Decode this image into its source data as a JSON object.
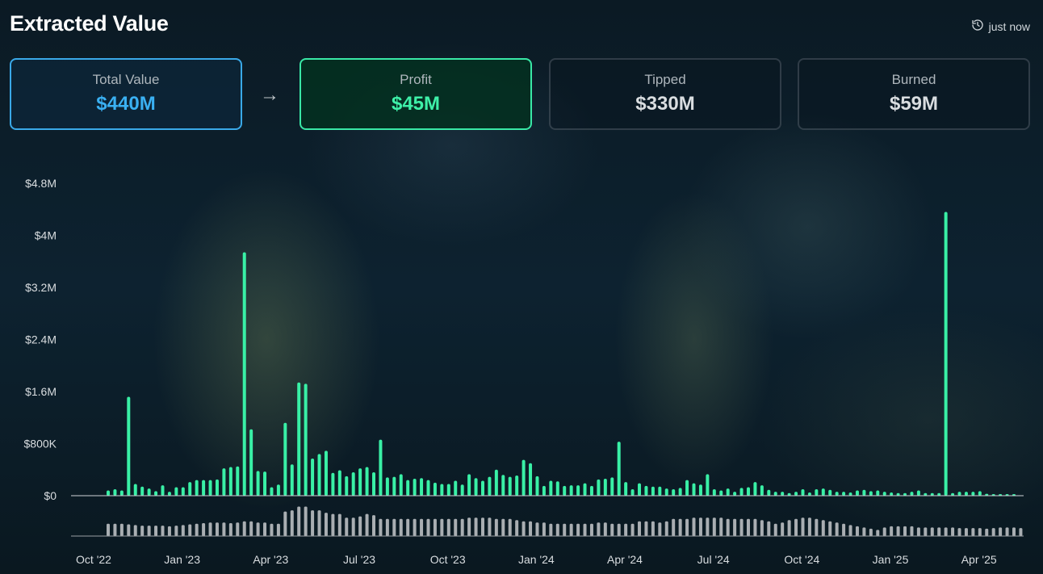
{
  "header": {
    "title": "Extracted Value",
    "updated": "just now",
    "updated_icon": "history-icon"
  },
  "cards": {
    "total": {
      "label": "Total Value",
      "value": "$440M"
    },
    "profit": {
      "label": "Profit",
      "value": "$45M"
    },
    "tipped": {
      "label": "Tipped",
      "value": "$330M"
    },
    "burned": {
      "label": "Burned",
      "value": "$59M"
    },
    "arrow": "→"
  },
  "colors": {
    "profit": "#39f0a6",
    "volume": "#a9aeb2",
    "total_accent": "#3ab0f2"
  },
  "chart_data": {
    "type": "bar",
    "x_start": "2022-10-01",
    "x_interval": "week",
    "y_ticks": [
      "$0",
      "$800K",
      "$1.6M",
      "$2.4M",
      "$3.2M",
      "$4M",
      "$4.8M"
    ],
    "ylim": [
      0,
      4800000
    ],
    "x_ticks": [
      "Oct '22",
      "Jan '23",
      "Apr '23",
      "Jul '23",
      "Oct '23",
      "Jan '24",
      "Apr '24",
      "Jul '24",
      "Oct '24",
      "Jan '25",
      "Apr '25"
    ],
    "series": [
      {
        "values": [
          80000,
          100000,
          80000,
          1520000,
          180000,
          140000,
          110000,
          70000,
          160000,
          60000,
          130000,
          130000,
          210000,
          240000,
          240000,
          240000,
          250000,
          420000,
          440000,
          450000,
          3740000,
          1020000,
          380000,
          370000,
          130000,
          170000,
          1120000,
          480000,
          1740000,
          1720000,
          570000,
          640000,
          690000,
          350000,
          390000,
          300000,
          360000,
          420000,
          440000,
          360000,
          860000,
          280000,
          290000,
          330000,
          240000,
          260000,
          270000,
          240000,
          200000,
          180000,
          180000,
          230000,
          170000,
          330000,
          270000,
          230000,
          290000,
          400000,
          320000,
          290000,
          310000,
          550000,
          500000,
          300000,
          150000,
          230000,
          220000,
          150000,
          160000,
          160000,
          190000,
          150000,
          250000,
          260000,
          280000,
          830000,
          210000,
          100000,
          190000,
          150000,
          140000,
          140000,
          110000,
          100000,
          120000,
          240000,
          190000,
          170000,
          330000,
          100000,
          80000,
          110000,
          60000,
          120000,
          130000,
          210000,
          160000,
          90000,
          60000,
          60000,
          40000,
          60000,
          100000,
          50000,
          100000,
          110000,
          90000,
          60000,
          60000,
          50000,
          80000,
          90000,
          70000,
          80000,
          60000,
          50000,
          40000,
          40000,
          60000,
          80000,
          40000,
          40000,
          40000,
          4360000,
          40000,
          60000,
          60000,
          60000,
          70000,
          30000,
          20000,
          20000,
          20000,
          20000
        ]
      },
      {
        "values": [
          0.4,
          0.4,
          0.4,
          0.38,
          0.36,
          0.34,
          0.34,
          0.34,
          0.34,
          0.32,
          0.34,
          0.36,
          0.38,
          0.4,
          0.42,
          0.44,
          0.44,
          0.44,
          0.42,
          0.44,
          0.48,
          0.48,
          0.44,
          0.44,
          0.4,
          0.4,
          0.8,
          0.84,
          0.96,
          0.96,
          0.84,
          0.84,
          0.76,
          0.72,
          0.72,
          0.6,
          0.6,
          0.64,
          0.72,
          0.68,
          0.56,
          0.56,
          0.56,
          0.56,
          0.56,
          0.56,
          0.56,
          0.56,
          0.56,
          0.56,
          0.56,
          0.56,
          0.56,
          0.6,
          0.6,
          0.6,
          0.6,
          0.56,
          0.56,
          0.56,
          0.52,
          0.48,
          0.48,
          0.44,
          0.44,
          0.4,
          0.4,
          0.4,
          0.4,
          0.4,
          0.4,
          0.4,
          0.44,
          0.44,
          0.4,
          0.4,
          0.4,
          0.4,
          0.48,
          0.48,
          0.48,
          0.44,
          0.48,
          0.56,
          0.56,
          0.56,
          0.6,
          0.6,
          0.6,
          0.6,
          0.6,
          0.56,
          0.56,
          0.56,
          0.56,
          0.56,
          0.52,
          0.48,
          0.4,
          0.44,
          0.52,
          0.56,
          0.6,
          0.6,
          0.56,
          0.52,
          0.48,
          0.44,
          0.4,
          0.36,
          0.32,
          0.28,
          0.24,
          0.2,
          0.28,
          0.32,
          0.32,
          0.32,
          0.32,
          0.28,
          0.28,
          0.28,
          0.28,
          0.28,
          0.28,
          0.26,
          0.26,
          0.26,
          0.26,
          0.24,
          0.26,
          0.28,
          0.28,
          0.28,
          0.26
        ]
      }
    ]
  }
}
